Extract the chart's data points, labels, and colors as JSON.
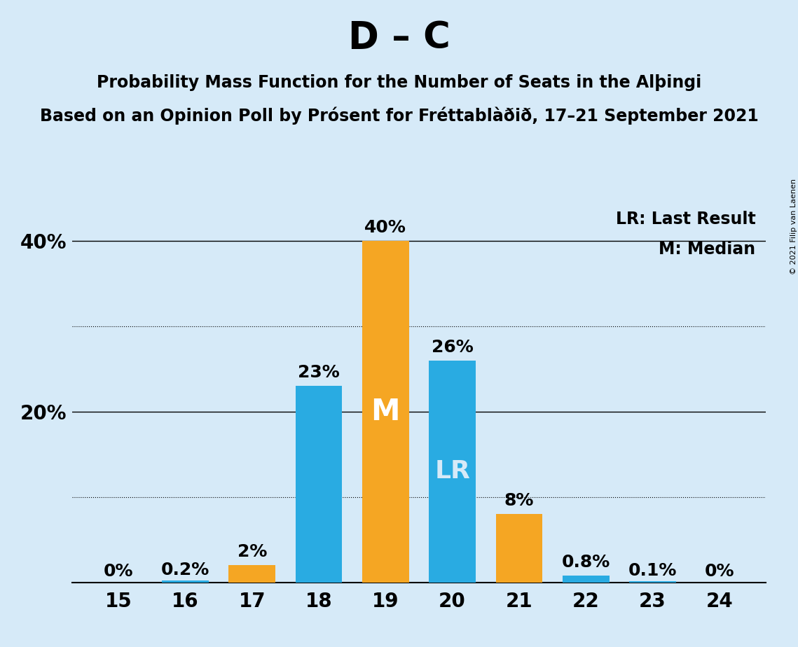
{
  "title": "D – C",
  "subtitle1": "Probability Mass Function for the Number of Seats in the Alþingi",
  "subtitle2": "Based on an Opinion Poll by Prósent for Fréttablàðið, 17–21 September 2021",
  "copyright": "© 2021 Filip van Laenen",
  "x_values": [
    15,
    16,
    17,
    18,
    19,
    20,
    21,
    22,
    23,
    24
  ],
  "probabilities": [
    0.0,
    0.2,
    2.0,
    23.0,
    40.0,
    26.0,
    8.0,
    0.8,
    0.1,
    0.0
  ],
  "labels": [
    "0%",
    "0.2%",
    "2%",
    "23%",
    "40%",
    "26%",
    "8%",
    "0.8%",
    "0.1%",
    "0%"
  ],
  "bar_colors": [
    "#29ABE2",
    "#29ABE2",
    "#F5A623",
    "#29ABE2",
    "#F5A623",
    "#29ABE2",
    "#F5A623",
    "#29ABE2",
    "#29ABE2",
    "#29ABE2"
  ],
  "median_bar": 19,
  "lr_bar": 20,
  "median_label": "M",
  "lr_label": "LR",
  "legend_lr": "LR: Last Result",
  "legend_m": "M: Median",
  "ylim": [
    0,
    44
  ],
  "yticks": [
    20,
    40
  ],
  "ytick_labels": [
    "20%",
    "40%"
  ],
  "dotted_lines": [
    10,
    30
  ],
  "solid_lines": [
    20,
    40
  ],
  "background_color": "#D6EAF8",
  "bar_width": 0.7,
  "title_fontsize": 38,
  "subtitle_fontsize": 17,
  "axis_fontsize": 20,
  "label_fontsize": 18,
  "legend_fontsize": 17,
  "median_label_fontsize": 30,
  "lr_label_fontsize": 26
}
